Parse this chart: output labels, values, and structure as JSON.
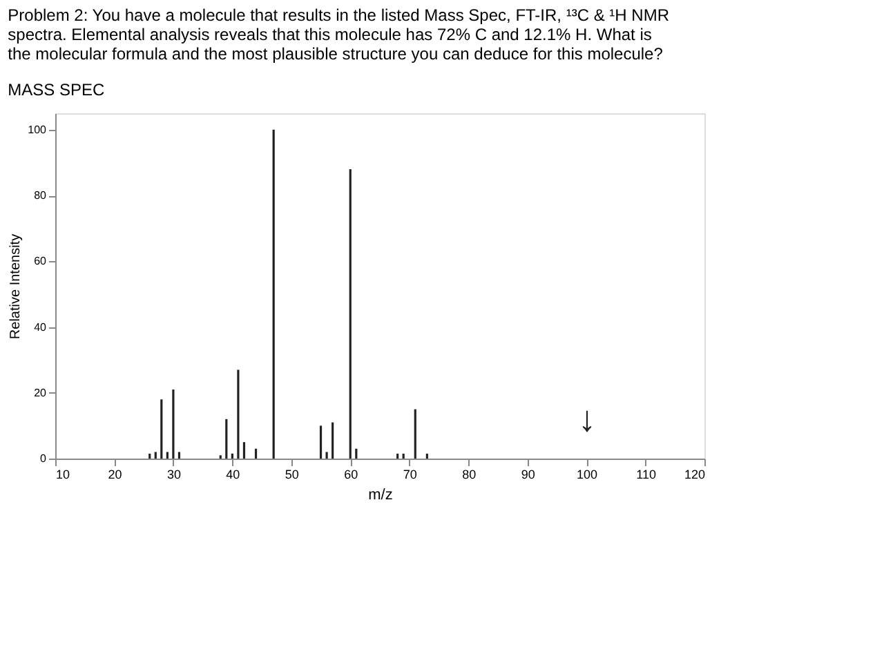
{
  "chart_data": {
    "type": "bar",
    "title": "Problem 2: You have a molecule that results in the listed Mass Spec, FT-IR, ¹³C & ¹H NMR spectra. Elemental analysis reveals that this molecule has 72% C and 12.1% H. What is the molecular formula and the most plausible structure you can deduce for this molecule?",
    "subtitle": "MASS SPEC",
    "xlabel": "m/z",
    "ylabel": "Relative Intensity",
    "x": [
      26,
      27,
      28,
      29,
      30,
      31,
      38,
      39,
      40,
      41,
      42,
      44,
      47,
      55,
      56,
      57,
      60,
      61,
      68,
      69,
      71,
      73
    ],
    "values": [
      1.5,
      2,
      18,
      2,
      21,
      2,
      1,
      12,
      1.5,
      27,
      5,
      3,
      100,
      10,
      2,
      11,
      88,
      3,
      1.5,
      1.5,
      15,
      1.5
    ],
    "color": "#222222",
    "xlim": [
      10,
      120
    ],
    "xticks": [
      10,
      20,
      30,
      40,
      50,
      60,
      70,
      80,
      90,
      100,
      110,
      120
    ],
    "ylim": [
      0,
      105
    ],
    "yticks": [
      0,
      20,
      40,
      60,
      80,
      100
    ],
    "annotations": [
      "↓"
    ],
    "grid": false
  }
}
